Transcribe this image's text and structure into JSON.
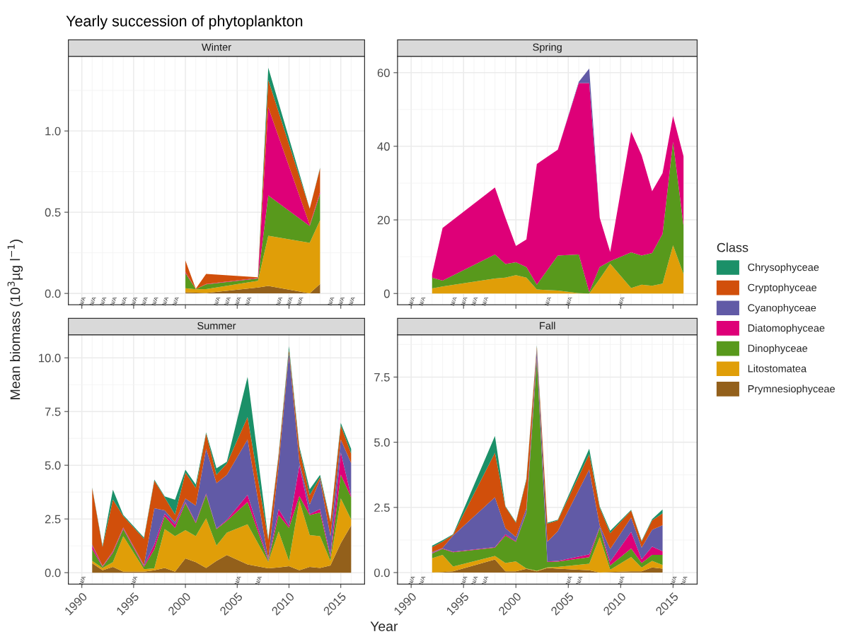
{
  "chart_data": [
    {
      "type": "area",
      "stacked": true,
      "title": "Yearly succession of phytoplankton",
      "subtitle": "Winter",
      "ylabel": "Mean biomass (10$^{3}$µg l$^{−1}$)",
      "grid": true,
      "tick_labels": "y",
      "annotations": [
        "N/A",
        "N/A",
        "N/A",
        "N/A",
        "N/A",
        "N/A",
        "N/A",
        "N/A",
        "N/A",
        "N/A",
        "N/A",
        "N/A",
        "N/A",
        "N/A",
        "N/A",
        "N/A",
        "N/A",
        "N/A",
        "N/A",
        "N/A"
      ],
      "x": [
        2000,
        2001,
        2002,
        2007,
        2008,
        2012,
        2013
      ],
      "xlim": [
        1988.7,
        2017.3
      ],
      "xticks": [
        1990,
        1995,
        2000,
        2005,
        2010,
        2015
      ],
      "ylim": [
        -0.07,
        1.46
      ],
      "yticks": [
        {
          "value": 0,
          "label": "0.0"
        },
        {
          "value": 0.5,
          "label": "0.5"
        },
        {
          "value": 1,
          "label": "1.0"
        }
      ],
      "series": [
        {
          "color": "#93601b",
          "values": [
            0.007,
            0.005,
            0.003,
            0.036,
            0.046,
            0,
            0.058
          ]
        },
        {
          "color": "#e09e08",
          "values": [
            0.025,
            0.02,
            0.024,
            0.042,
            0.309,
            0.312,
            0.393
          ]
        },
        {
          "color": "#58991c",
          "values": [
            0.094,
            0.002,
            0.029,
            0.014,
            0.248,
            0.103,
            0.162
          ]
        },
        {
          "color": "#de0078",
          "values": [
            0.007,
            0,
            0.002,
            0.003,
            0.542,
            0.007,
            0.012
          ]
        },
        {
          "color": "#d14f0b",
          "values": [
            0.07,
            0.002,
            0.062,
            0.004,
            0.17,
            0.1,
            0.144
          ]
        },
        {
          "color": "#1b9068",
          "values": [
            0,
            0,
            0,
            0,
            0.075,
            0,
            0.005
          ]
        }
      ]
    },
    {
      "type": "area",
      "stacked": true,
      "subtitle": "Spring",
      "grid": true,
      "tick_labels": "y",
      "annotations": [
        "N/A",
        "N/A",
        "N/A",
        "N/A",
        "N/A",
        "N/A",
        "N/A",
        "N/A",
        "N/A"
      ],
      "x": [
        1992,
        1993,
        1998,
        1999,
        2000,
        2001,
        2002,
        2004,
        2006,
        2007,
        2008,
        2009,
        2011,
        2012,
        2013,
        2014,
        2015,
        2016
      ],
      "xlim": [
        1988.7,
        2017.3
      ],
      "xticks": [
        1990,
        1995,
        2000,
        2005,
        2010,
        2015
      ],
      "ylim": [
        -3.07,
        64.47
      ],
      "yticks": [
        0,
        20,
        40,
        60
      ],
      "series": [
        {
          "color": "#e09e08",
          "values": [
            1.4,
            1.9,
            4.1,
            4.3,
            5.0,
            4.3,
            1.1,
            0.8,
            0.1,
            0,
            4.0,
            8.1,
            1.5,
            2.4,
            2.1,
            2.7,
            13.1,
            5.3
          ]
        },
        {
          "color": "#58991c",
          "values": [
            2.9,
            1.6,
            6.5,
            3.7,
            3.5,
            2.9,
            1.3,
            9.5,
            10.5,
            0.4,
            3.2,
            0.7,
            9.7,
            7.9,
            8.9,
            13.5,
            28.1,
            13.1
          ]
        },
        {
          "color": "#de0078",
          "values": [
            1.0,
            14.3,
            18.2,
            12.6,
            4.4,
            7.5,
            32.8,
            28.8,
            46.6,
            56.8,
            13.4,
            2.5,
            32.8,
            27.3,
            16.8,
            16.5,
            7.0,
            18.9
          ]
        },
        {
          "color": "#615aa6",
          "values": [
            0,
            0,
            0,
            0,
            0,
            0,
            0,
            0,
            0.3,
            3.9,
            0,
            0,
            0,
            0,
            0,
            0,
            0,
            0
          ]
        }
      ]
    },
    {
      "type": "area",
      "stacked": true,
      "subtitle": "Summer",
      "xlabel": "Year",
      "legend_title": "Class",
      "legend": "right",
      "grid": true,
      "annotations": [
        "N/A",
        "N/A",
        "N/A",
        "N/A"
      ],
      "x": [
        1991,
        1992,
        1993,
        1994,
        1996,
        1997,
        1998,
        1999,
        2000,
        2001,
        2002,
        2003,
        2004,
        2006,
        2008,
        2009,
        2010,
        2011,
        2012,
        2013,
        2014,
        2015,
        2016
      ],
      "xlim": [
        1988.7,
        2017.3
      ],
      "xticks": [
        1990,
        1995,
        2000,
        2005,
        2010,
        2015
      ],
      "ylim": [
        -0.53,
        11.07
      ],
      "yticks": [
        {
          "value": 0,
          "label": "0.0"
        },
        {
          "value": 2.5,
          "label": "2.5"
        },
        {
          "value": 5,
          "label": "5.0"
        },
        {
          "value": 7.5,
          "label": "7.5"
        },
        {
          "value": 10,
          "label": "10.0"
        }
      ],
      "series": [
        {
          "name": "Prymnesiophyceae",
          "color": "#93601b",
          "values": [
            0.44,
            0.11,
            0.27,
            0.05,
            0.05,
            0.11,
            0.22,
            0.05,
            0.66,
            0.49,
            0.22,
            0.55,
            0.82,
            0.38,
            0.2,
            0.24,
            0.3,
            0.11,
            0.27,
            0.22,
            0.33,
            1.37,
            2.2
          ]
        },
        {
          "name": "Litostomatea",
          "color": "#e09e08",
          "values": [
            0.11,
            0.11,
            0.22,
            1.65,
            0.11,
            0.09,
            1.81,
            1.65,
            1.32,
            1.21,
            2.31,
            0.71,
            1.04,
            1.87,
            0.3,
            1.68,
            0.25,
            3.24,
            1.48,
            1.48,
            0.22,
            2.09,
            0.27
          ]
        },
        {
          "name": "Dinophyceae",
          "color": "#58991c",
          "values": [
            0.55,
            0.05,
            0.44,
            0.33,
            0.11,
            0.88,
            0.6,
            0.38,
            1.26,
            0.6,
            1.1,
            0.77,
            0.55,
            1.04,
            0.05,
            0.77,
            1.54,
            0.22,
            0.93,
            1.1,
            0.16,
            1.1,
            1.04
          ]
        },
        {
          "name": "Diatomophyceae",
          "color": "#de0078",
          "values": [
            0.16,
            0.02,
            0.05,
            0.05,
            0.05,
            0.24,
            0.11,
            0.16,
            0.05,
            0.05,
            0.05,
            0.02,
            0.05,
            0.33,
            0.05,
            0.27,
            0.08,
            1.43,
            0.05,
            0.16,
            0.11,
            1.04,
            0.05
          ]
        },
        {
          "name": "Cyanophyceae",
          "color": "#615aa6",
          "values": [
            0.05,
            0.02,
            0.02,
            0.02,
            0.03,
            1.68,
            0.16,
            0.11,
            0.16,
            0.77,
            2.09,
            2.12,
            2.09,
            2.58,
            0.05,
            2.03,
            8.05,
            0.16,
            0.44,
            1.37,
            0.88,
            0.6,
            1.54
          ]
        },
        {
          "name": "Cryptophyceae",
          "color": "#d14f0b",
          "values": [
            2.63,
            0.89,
            2.4,
            0.53,
            1.23,
            1.28,
            0.6,
            0.35,
            1.21,
            0.82,
            0.71,
            0.38,
            0.53,
            1.04,
            0.88,
            0.44,
            0.16,
            0.6,
            0.44,
            0.11,
            0.66,
            0.66,
            0.44
          ]
        },
        {
          "name": "Chrysophyceae",
          "color": "#1b9068",
          "values": [
            0.03,
            0.05,
            0.46,
            0.06,
            0.05,
            0.05,
            0.05,
            0.69,
            0.13,
            0.16,
            0.05,
            0.31,
            0.08,
            1.87,
            0.05,
            0.09,
            0.16,
            0.11,
            0.27,
            0.11,
            0.05,
            0.11,
            0.22
          ]
        }
      ]
    },
    {
      "type": "area",
      "stacked": true,
      "subtitle": "Fall",
      "grid": true,
      "annotations": [
        "N/A",
        "N/A",
        "N/A",
        "N/A",
        "N/A",
        "N/A",
        "N/A",
        "N/A",
        "N/A",
        "N/A"
      ],
      "x": [
        1992,
        1993,
        1994,
        1998,
        1999,
        2000,
        2001,
        2002,
        2003,
        2004,
        2007,
        2008,
        2009,
        2011,
        2012,
        2013,
        2014
      ],
      "xlim": [
        1988.7,
        2017.3
      ],
      "xticks": [
        1990,
        1995,
        2000,
        2005,
        2010,
        2015
      ],
      "ylim": [
        -0.44,
        9.12
      ],
      "yticks": [
        {
          "value": 0,
          "label": "0.0"
        },
        {
          "value": 2.5,
          "label": "2.5"
        },
        {
          "value": 5,
          "label": "5.0"
        },
        {
          "value": 7.5,
          "label": "7.5"
        }
      ],
      "series": [
        {
          "color": "#93601b",
          "values": [
            0,
            0.02,
            0.05,
            0.5,
            0.05,
            0.05,
            0.14,
            0.05,
            0.18,
            0.15,
            0.09,
            0,
            0.02,
            0.05,
            0.05,
            0.2,
            0.15
          ]
        },
        {
          "color": "#e09e08",
          "values": [
            0.55,
            0.66,
            0.18,
            0.14,
            0.32,
            0.38,
            0.02,
            0.02,
            0.02,
            0.07,
            0.25,
            1.36,
            0.09,
            0.55,
            0.14,
            0.25,
            0.14
          ]
        },
        {
          "color": "#58991c",
          "values": [
            0.18,
            0.23,
            0.55,
            0.32,
            1.05,
            0.75,
            2.12,
            8.1,
            0.21,
            0.2,
            0.25,
            0.36,
            0.16,
            0.32,
            0.18,
            0.23,
            0.39
          ]
        },
        {
          "color": "#de0078",
          "values": [
            0.02,
            0.02,
            0.02,
            0.02,
            0.05,
            0.03,
            0.03,
            0.09,
            0.02,
            0.03,
            0.11,
            0.03,
            0.15,
            0.64,
            0.14,
            0.32,
            0.14
          ]
        },
        {
          "color": "#615aa6",
          "values": [
            0.03,
            0.01,
            0.62,
            1.91,
            0.23,
            0.15,
            0.15,
            0.32,
            0.75,
            1.14,
            3.25,
            0.06,
            0.48,
            0.55,
            0.45,
            0.64,
            1.0
          ]
        },
        {
          "color": "#d14f0b",
          "values": [
            0.2,
            0.25,
            0.03,
            1.71,
            0.82,
            0.55,
            1.09,
            0.09,
            0.7,
            0.41,
            0.59,
            0.68,
            0.61,
            0.27,
            0.23,
            0.36,
            0.45
          ]
        },
        {
          "color": "#1b9068",
          "values": [
            0.05,
            0.05,
            0.02,
            0.64,
            0.03,
            0.03,
            0.05,
            0.05,
            0.03,
            0.03,
            0.21,
            0.05,
            0.09,
            0.03,
            0.03,
            0.05,
            0.15
          ]
        }
      ]
    }
  ]
}
